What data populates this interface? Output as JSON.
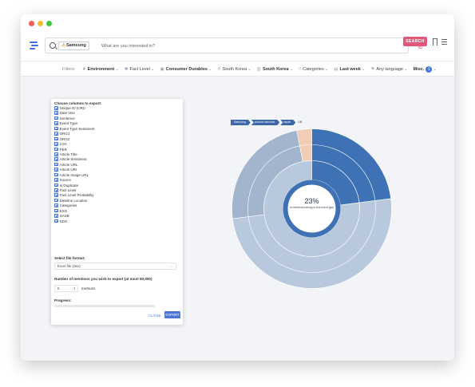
{
  "search": {
    "tag": "Samsung",
    "placeholder": "What are you interested in?",
    "button": "SEARCH"
  },
  "filters": {
    "label": "Filters:",
    "items": [
      {
        "icon": "leaf-icon",
        "glyph": "❦",
        "label": "Environment",
        "bold": true
      },
      {
        "icon": "star-icon",
        "glyph": "✱",
        "label": "Fact Level",
        "bold": false
      },
      {
        "icon": "briefcase-icon",
        "glyph": "▣",
        "label": "Consumer Durables",
        "bold": true
      },
      {
        "icon": "location-icon",
        "glyph": "⚲",
        "label": "South Korea",
        "bold": false
      },
      {
        "icon": "building-icon",
        "glyph": "▥",
        "label": "South Korea",
        "bold": true
      },
      {
        "icon": "category-icon",
        "glyph": "⌑",
        "label": "Categories",
        "bold": false
      },
      {
        "icon": "calendar-icon",
        "glyph": "▤",
        "label": "Last week",
        "bold": true
      },
      {
        "icon": "language-icon",
        "glyph": "⚑",
        "label": "Any language",
        "bold": false
      },
      {
        "icon": "misc-icon",
        "glyph": "",
        "label": "Misc.",
        "bold": true,
        "badge": "1"
      }
    ]
  },
  "export": {
    "choose_label": "Choose columns to export:",
    "columns": [
      "Unique ID (URI)",
      "Date time",
      "Sentence",
      "Event Type",
      "Event Type Sentiment",
      "ORG1",
      "ORG2",
      "LOC",
      "PER",
      "Article Title",
      "Article Sentiment",
      "Article URL",
      "Article URI",
      "Article Image URL",
      "Source",
      "Is Duplicate",
      "Fact Level",
      "Fact Level Probability",
      "Dateline Location",
      "Categories",
      "ESG",
      "SASB",
      "SDG"
    ],
    "format_label": "Select file format:",
    "format_value": "Excel file (xlsx)",
    "mentions_label": "Number of mentions you wish to export (at most 50,000)",
    "mentions_value": "0",
    "mentions_unit": "mentions",
    "progress_label": "Progress:",
    "progress": 0,
    "close_label": "CLOSE",
    "export_label": "EXPORT"
  },
  "breadcrumb": {
    "items": [
      "Samsung",
      "product services",
      "repair"
    ],
    "current": "UN"
  },
  "chart_data": {
    "type": "sunburst",
    "center_value": "23%",
    "center_text": "of mentions belong to this event type",
    "rings": [
      {
        "level": 1,
        "segments": [
          {
            "value": 23,
            "color": "#3f72b4"
          },
          {
            "value": 77,
            "color": "#b9c9dd"
          }
        ]
      },
      {
        "level": 2,
        "segments": [
          {
            "value": 23,
            "color": "#3f72b4"
          },
          {
            "value": 60,
            "color": "#b9c9dd"
          },
          {
            "value": 17,
            "color": "#a8bbd3"
          }
        ]
      },
      {
        "level": 3,
        "segments": [
          {
            "value": 23,
            "color": "#3f72b4"
          },
          {
            "value": 50,
            "color": "#b9c9dd"
          },
          {
            "value": 24,
            "color": "#a3b5cd"
          },
          {
            "value": 3,
            "color": "#f1cdb7"
          }
        ]
      }
    ],
    "colors": {
      "highlight": "#3f72b4",
      "other": "#b9c9dd",
      "accent": "#f1cdb7"
    }
  }
}
